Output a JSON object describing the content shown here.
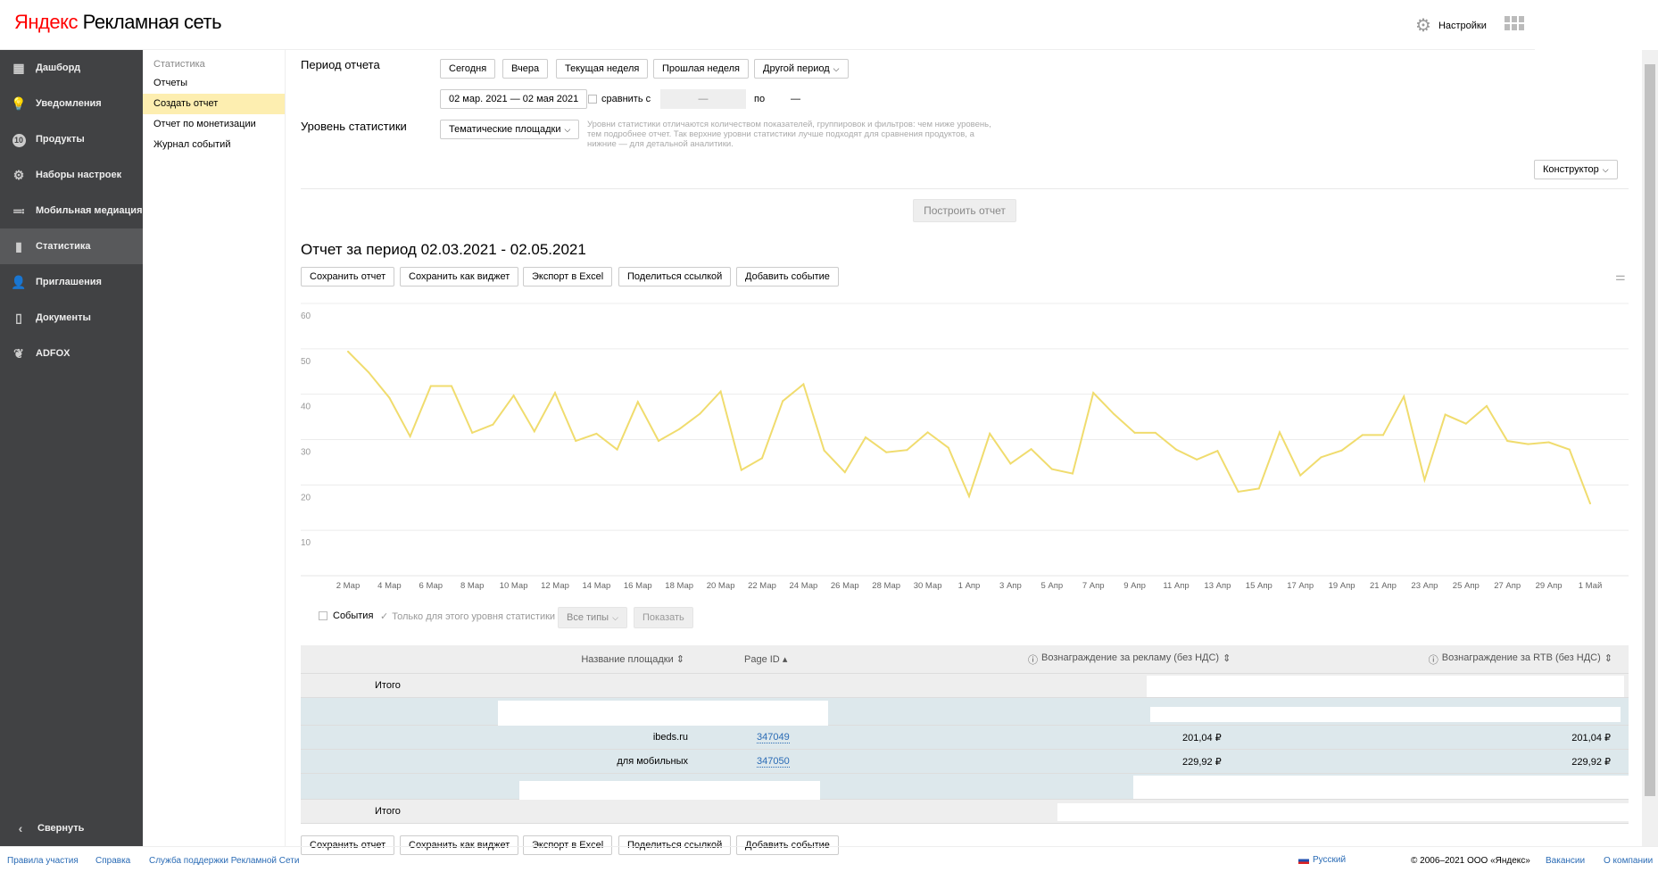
{
  "header": {
    "logo_brand": "Яндекс",
    "logo_product": "Рекламная сеть",
    "settings": "Настройки"
  },
  "sidebar": {
    "items": [
      {
        "label": "Дашборд",
        "icon": "dashboard-icon"
      },
      {
        "label": "Уведомления",
        "icon": "bulb-icon"
      },
      {
        "label": "Продукты",
        "icon": "products-icon",
        "badge": "10"
      },
      {
        "label": "Наборы настроек",
        "icon": "gear-icon"
      },
      {
        "label": "Мобильная медиация",
        "icon": "mediation-icon"
      },
      {
        "label": "Статистика",
        "icon": "stats-icon"
      },
      {
        "label": "Приглашения",
        "icon": "invite-icon"
      },
      {
        "label": "Документы",
        "icon": "document-icon"
      },
      {
        "label": "ADFOX",
        "icon": "adfox-icon"
      }
    ],
    "collapse": "Свернуть"
  },
  "submenu": {
    "heading": "Статистика",
    "items": [
      "Отчеты",
      "Создать отчет",
      "Отчет по монетизации",
      "Журнал событий"
    ]
  },
  "filters": {
    "period_label": "Период отчета",
    "period_buttons": [
      "Сегодня",
      "Вчера",
      "Текущая неделя",
      "Прошлая неделя",
      "Другой период"
    ],
    "date_range": "02 мар. 2021 — 02 мая 2021",
    "compare_label": "сравнить с",
    "compare_from": "—",
    "compare_to_label": "по",
    "compare_to": "—",
    "level_label": "Уровень статистики",
    "level_value": "Тематические площадки",
    "level_hint": "Уровни статистики отличаются количеством показателей, группировок и фильтров: чем ниже уровень, тем подробнее отчет. Так верхние уровни статистики лучше подходят для сравнения продуктов, а нижние — для детальной аналитики.",
    "constructor": "Конструктор",
    "build": "Построить отчет"
  },
  "report": {
    "title": "Отчет за период 02.03.2021 - 02.05.2021",
    "actions": [
      "Сохранить отчет",
      "Сохранить как виджет",
      "Экспорт в Excel",
      "Поделиться ссылкой",
      "Добавить событие"
    ]
  },
  "events": {
    "events_label": "События",
    "only_level_label": "Только для этого уровня статистики",
    "types": "Все типы",
    "show": "Показать"
  },
  "chart_data": {
    "type": "line",
    "title": "",
    "xlabel": "",
    "ylabel": "",
    "ylim": [
      0,
      60
    ],
    "yticks": [
      10,
      20,
      30,
      40,
      50,
      60
    ],
    "grid": true,
    "color": "#f0dc6e",
    "xticks": [
      "2 Мар",
      "4 Мар",
      "6 Мар",
      "8 Мар",
      "10 Мар",
      "12 Мар",
      "14 Мар",
      "16 Мар",
      "18 Мар",
      "20 Мар",
      "22 Мар",
      "24 Мар",
      "26 Мар",
      "28 Мар",
      "30 Мар",
      "1 Апр",
      "3 Апр",
      "5 Апр",
      "7 Апр",
      "9 Апр",
      "11 Апр",
      "13 Апр",
      "15 Апр",
      "17 Апр",
      "19 Апр",
      "21 Апр",
      "23 Апр",
      "25 Апр",
      "27 Апр",
      "29 Апр",
      "1 Май"
    ],
    "values": [
      49.4,
      44.8,
      39.2,
      30.7,
      41.8,
      41.8,
      31.5,
      33.3,
      39.7,
      31.8,
      40.3,
      29.7,
      31.3,
      27.8,
      38.3,
      29.7,
      32.3,
      35.7,
      40.6,
      23.3,
      25.9,
      38.5,
      42.2,
      27.6,
      22.8,
      30.5,
      27.2,
      27.7,
      31.6,
      28.2,
      17.5,
      31.3,
      24.7,
      27.9,
      23.5,
      22.5,
      40.3,
      35.6,
      31.5,
      31.5,
      27.8,
      25.6,
      27.5,
      18.5,
      19.2,
      31.6,
      22.1,
      26.1,
      27.6,
      31.0,
      31.0,
      39.5,
      21.1,
      35.5,
      33.5,
      37.4,
      29.7,
      29.0,
      29.4,
      27.8,
      15.9
    ]
  },
  "table": {
    "columns": [
      "Название площадки",
      "Page ID",
      "Вознаграждение за рекламу (без НДС)",
      "Вознаграждение за RTB (без НДС)"
    ],
    "total_label": "Итого",
    "rows": [
      {
        "name": "ibeds.ru",
        "page_id": "347049",
        "ad": "201,04 ₽",
        "rtb": "201,04 ₽"
      },
      {
        "name": "для мобильных",
        "page_id": "347050",
        "ad": "229,92 ₽",
        "rtb": "229,92 ₽"
      }
    ]
  },
  "footer": {
    "left": [
      "Правила участия",
      "Справка",
      "Служба поддержки Рекламной Сети"
    ],
    "language": "Русский",
    "copyright": "© 2006–2021 ООО «Яндекс»",
    "right": [
      "Вакансии",
      "О компании"
    ]
  }
}
